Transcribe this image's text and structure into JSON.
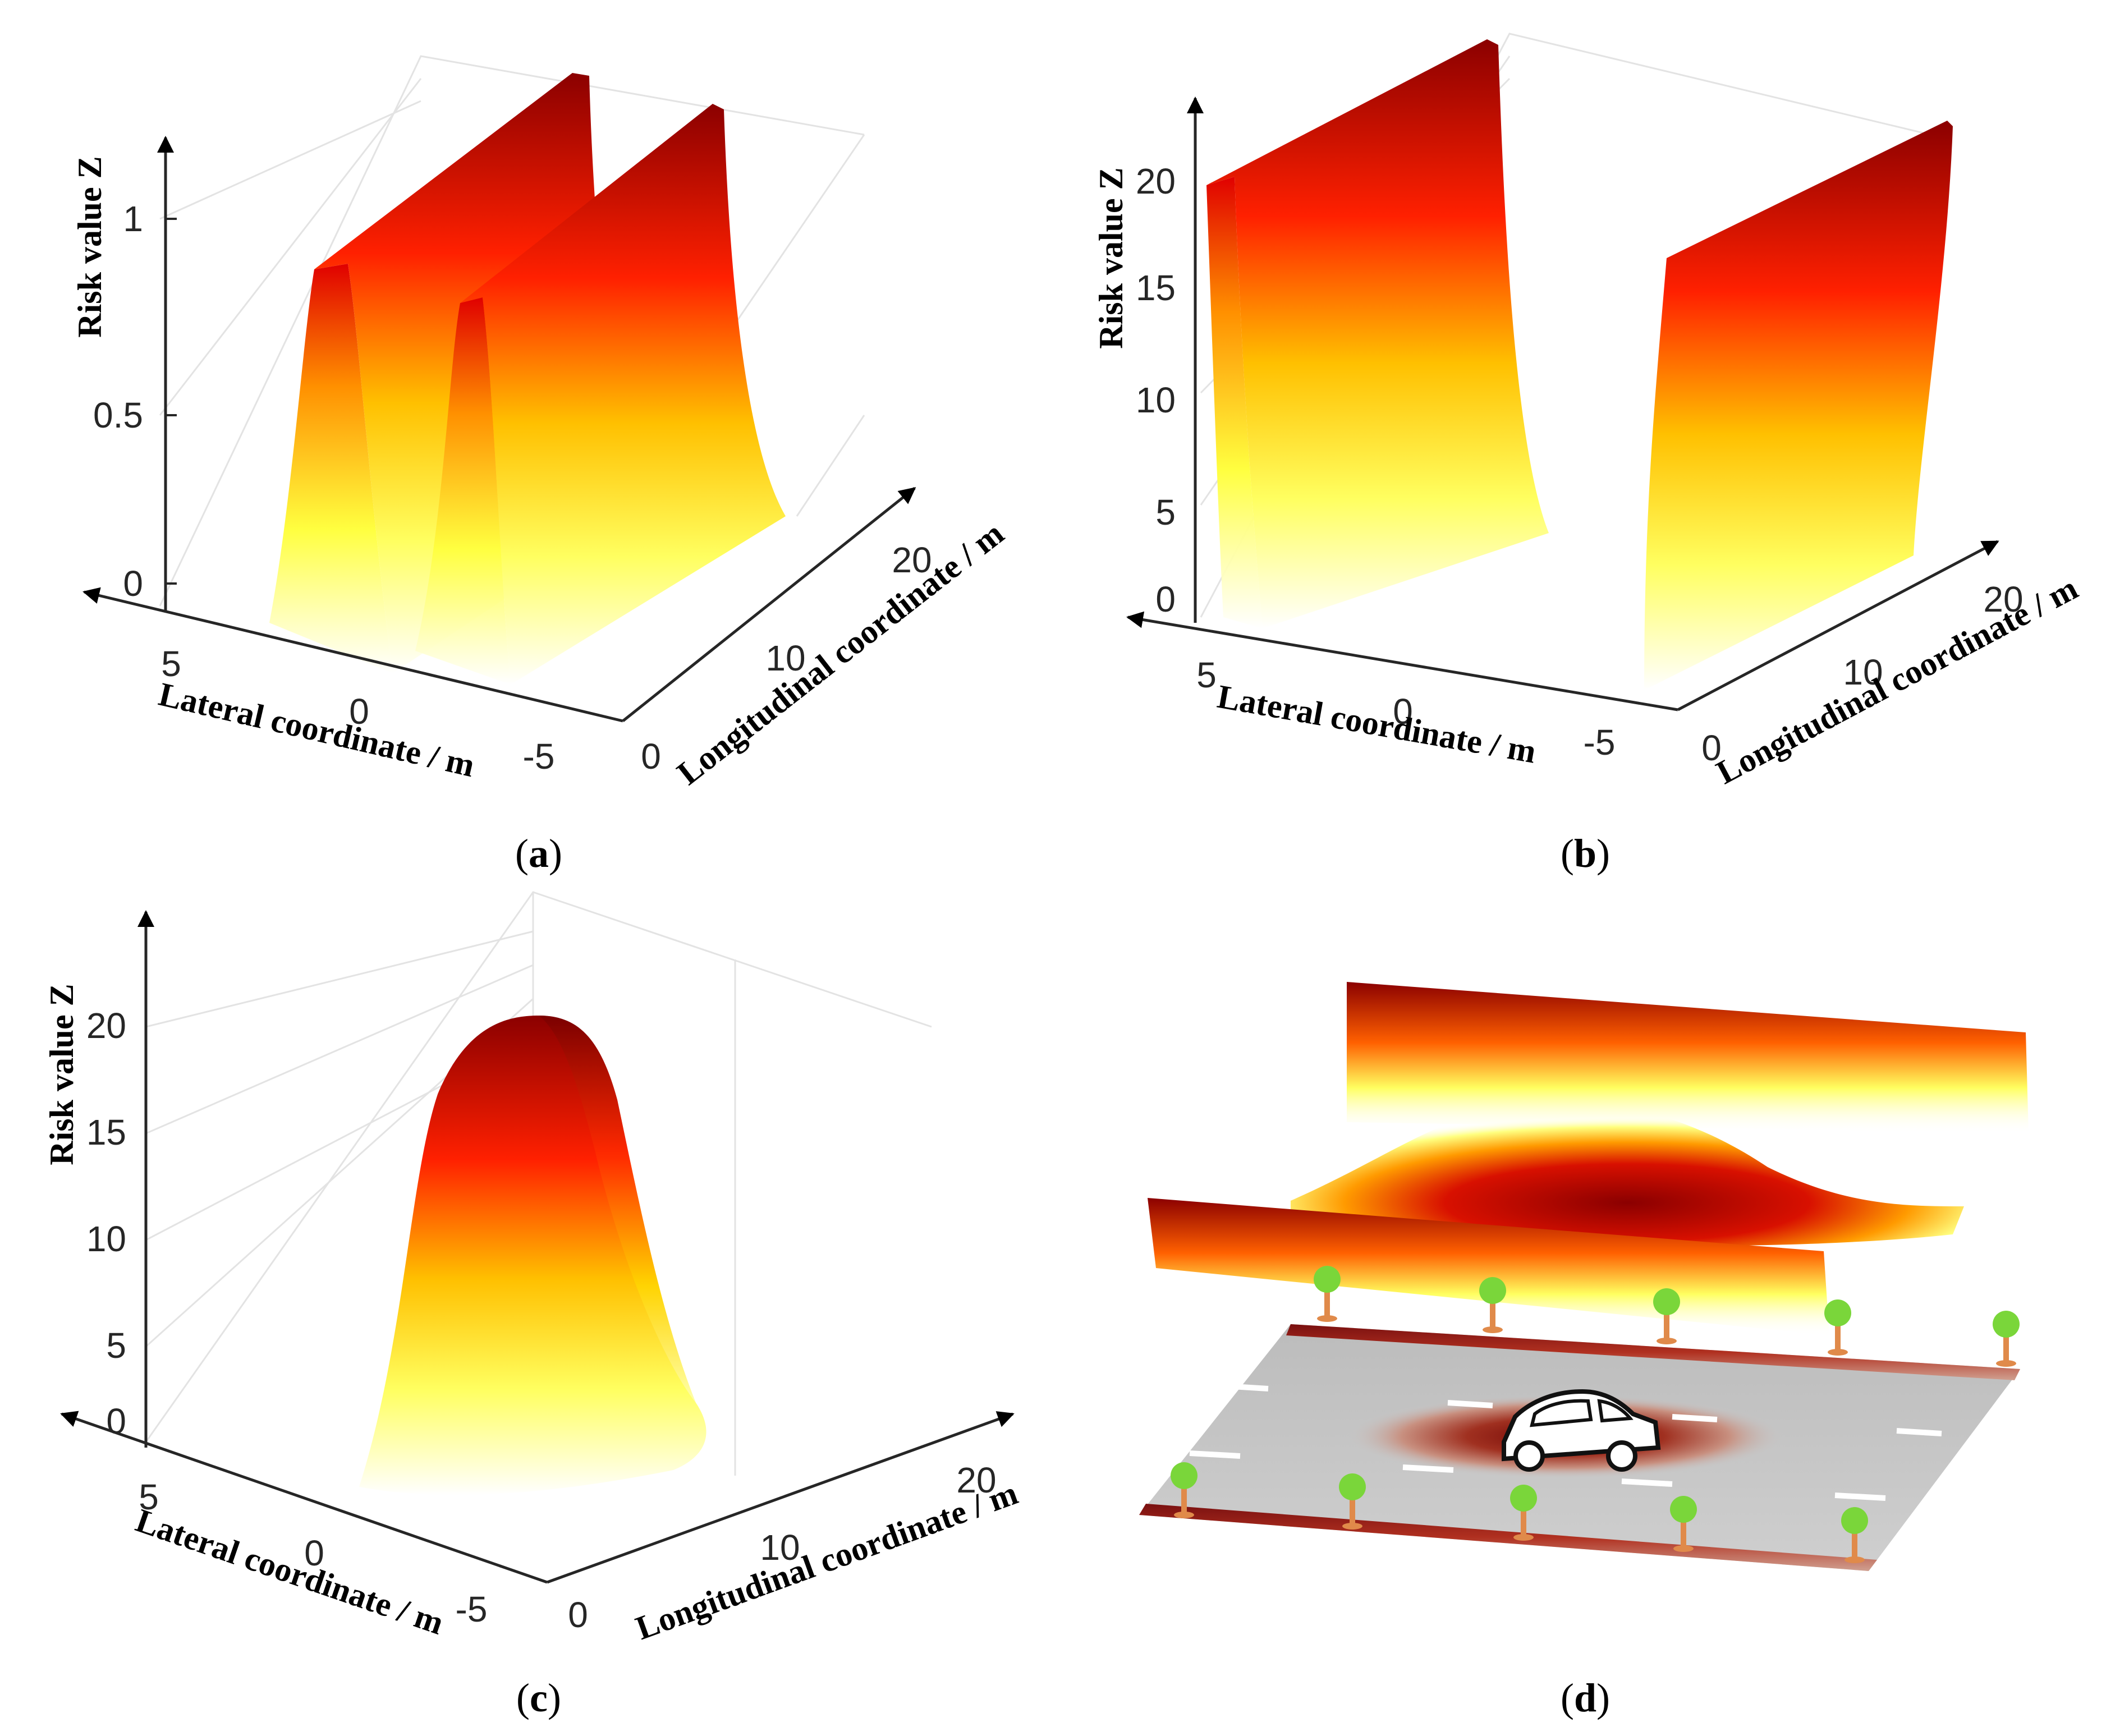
{
  "chart_data": [
    {
      "panel": "a",
      "type": "surface",
      "zlabel": "Risk value Z",
      "xlabel": "Lateral coordinate / m",
      "ylabel": "Longitudinal coordinate / m",
      "x_ticks": [
        "5",
        "0",
        "-5"
      ],
      "y_ticks": [
        "0",
        "10",
        "20"
      ],
      "z_ticks": [
        "0",
        "0.5",
        "1"
      ],
      "xlim": [
        -6,
        6
      ],
      "ylim": [
        0,
        25
      ],
      "zlim": [
        0,
        1
      ],
      "colormap": [
        "#ffffff",
        "#ffff00",
        "#ff8000",
        "#ff0000",
        "#8b0000"
      ],
      "peaks": [
        {
          "lateral": 1.75,
          "height": 1.0
        },
        {
          "lateral": -1.75,
          "height": 1.0
        }
      ]
    },
    {
      "panel": "b",
      "type": "surface",
      "zlabel": "Risk value Z",
      "xlabel": "Lateral coordinate / m",
      "ylabel": "Longitudinal coordinate / m",
      "x_ticks": [
        "5",
        "0",
        "-5"
      ],
      "y_ticks": [
        "0",
        "10",
        "20"
      ],
      "z_ticks": [
        "0",
        "5",
        "10",
        "15",
        "20"
      ],
      "xlim": [
        -6,
        6
      ],
      "ylim": [
        0,
        25
      ],
      "zlim": [
        0,
        24
      ],
      "colormap": [
        "#ffffff",
        "#ffff00",
        "#ff8000",
        "#ff0000",
        "#8b0000"
      ],
      "peaks": [
        {
          "lateral": 5.25,
          "height": 20
        },
        {
          "lateral": -5.25,
          "height": 20
        }
      ]
    },
    {
      "panel": "c",
      "type": "surface",
      "zlabel": "Risk value Z",
      "xlabel": "Lateral coordinate / m",
      "ylabel": "Longitudinal coordinate / m",
      "x_ticks": [
        "5",
        "0",
        "-5"
      ],
      "y_ticks": [
        "0",
        "10",
        "20"
      ],
      "z_ticks": [
        "0",
        "5",
        "10",
        "15",
        "20"
      ],
      "xlim": [
        -6,
        6
      ],
      "ylim": [
        0,
        25
      ],
      "zlim": [
        0,
        24
      ],
      "colormap": [
        "#ffffff",
        "#ffff00",
        "#ff8000",
        "#ff0000",
        "#8b0000"
      ],
      "peaks": [
        {
          "lateral": 0,
          "longitudinal": 12.5,
          "height": 20
        }
      ]
    }
  ],
  "panels": {
    "a": {
      "letter": "a"
    },
    "b": {
      "letter": "b"
    },
    "c": {
      "letter": "c"
    },
    "d": {
      "letter": "d"
    }
  }
}
